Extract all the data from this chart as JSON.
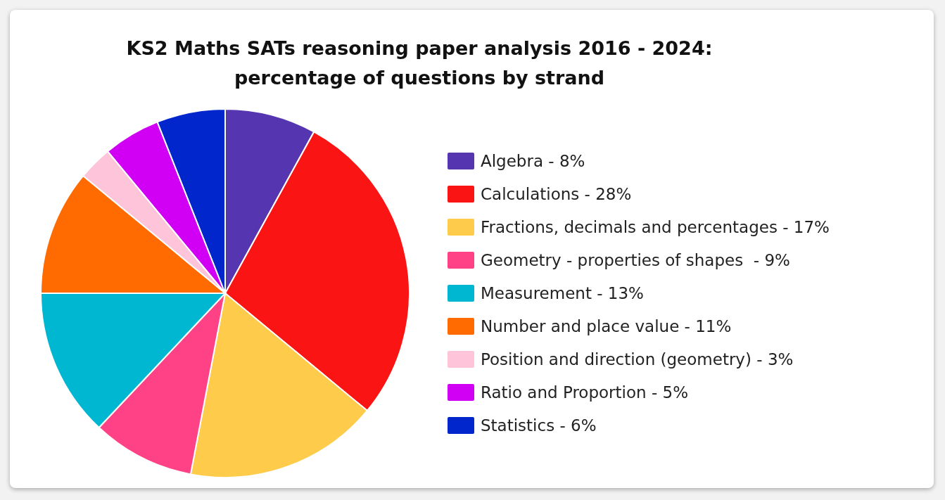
{
  "chart_data": {
    "type": "pie",
    "title": "KS2 Maths SATs reasoning paper analysis 2016 - 2024:\npercentage of questions by strand",
    "categories": [
      "Algebra - 8%",
      "Calculations - 28%",
      "Fractions, decimals and percentages - 17%",
      "Geometry - properties of shapes  - 9%",
      "Measurement - 13%",
      "Number and place value - 11%",
      "Position and direction (geometry) - 3%",
      "Ratio and Proportion - 5%",
      "Statistics - 6%"
    ],
    "values": [
      8,
      28,
      17,
      9,
      13,
      11,
      3,
      5,
      6
    ],
    "colors": [
      "#5535b0",
      "#fb1414",
      "#fecb4a",
      "#ff4285",
      "#00b7d1",
      "#ff6b00",
      "#fdc4da",
      "#d100f5",
      "#0026cc"
    ],
    "legend": "right"
  }
}
